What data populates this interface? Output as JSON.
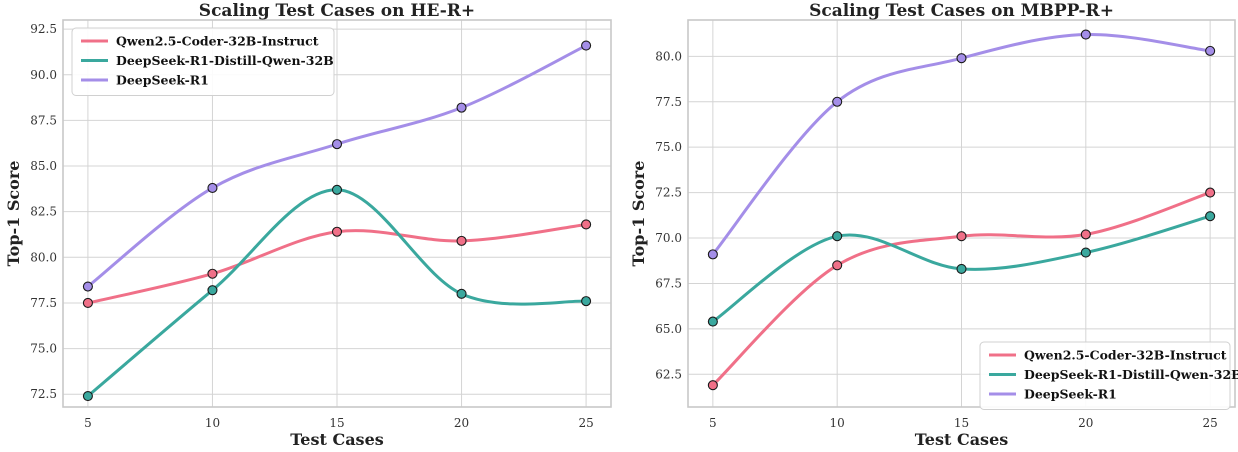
{
  "chart_data": [
    {
      "type": "line",
      "title": "Scaling Test Cases on HE-R+",
      "xlabel": "Test Cases",
      "ylabel": "Top-1 Score",
      "x": [
        5,
        10,
        15,
        20,
        25
      ],
      "xticks": [
        5,
        10,
        15,
        20,
        25
      ],
      "xlim": [
        4,
        26
      ],
      "yticks": [
        72.5,
        75.0,
        77.5,
        80.0,
        82.5,
        85.0,
        87.5,
        90.0,
        92.5
      ],
      "ylim": [
        71.8,
        93.0
      ],
      "grid": true,
      "legend_position": "top-left",
      "series": [
        {
          "name": "Qwen2.5-Coder-32B-Instruct",
          "color": "#f07088",
          "values": [
            77.5,
            79.1,
            81.4,
            80.9,
            81.8
          ]
        },
        {
          "name": "DeepSeek-R1-Distill-Qwen-32B",
          "color": "#3aa89e",
          "values": [
            72.4,
            78.2,
            83.7,
            78.0,
            77.6
          ]
        },
        {
          "name": "DeepSeek-R1",
          "color": "#a48ee8",
          "values": [
            78.4,
            83.8,
            86.2,
            88.2,
            91.6
          ]
        }
      ]
    },
    {
      "type": "line",
      "title": "Scaling Test Cases on MBPP-R+",
      "xlabel": "Test Cases",
      "ylabel": "Top-1 Score",
      "x": [
        5,
        10,
        15,
        20,
        25
      ],
      "xticks": [
        5,
        10,
        15,
        20,
        25
      ],
      "xlim": [
        4,
        26
      ],
      "yticks": [
        62.5,
        65.0,
        67.5,
        70.0,
        72.5,
        75.0,
        77.5,
        80.0
      ],
      "ylim": [
        60.7,
        82.0
      ],
      "grid": true,
      "legend_position": "bottom-right",
      "series": [
        {
          "name": "Qwen2.5-Coder-32B-Instruct",
          "color": "#f07088",
          "values": [
            61.9,
            68.5,
            70.1,
            70.2,
            72.5
          ]
        },
        {
          "name": "DeepSeek-R1-Distill-Qwen-32B",
          "color": "#3aa89e",
          "values": [
            65.4,
            70.1,
            68.3,
            69.2,
            71.2
          ]
        },
        {
          "name": "DeepSeek-R1",
          "color": "#a48ee8",
          "values": [
            69.1,
            77.5,
            79.9,
            81.2,
            80.3
          ]
        }
      ]
    }
  ]
}
